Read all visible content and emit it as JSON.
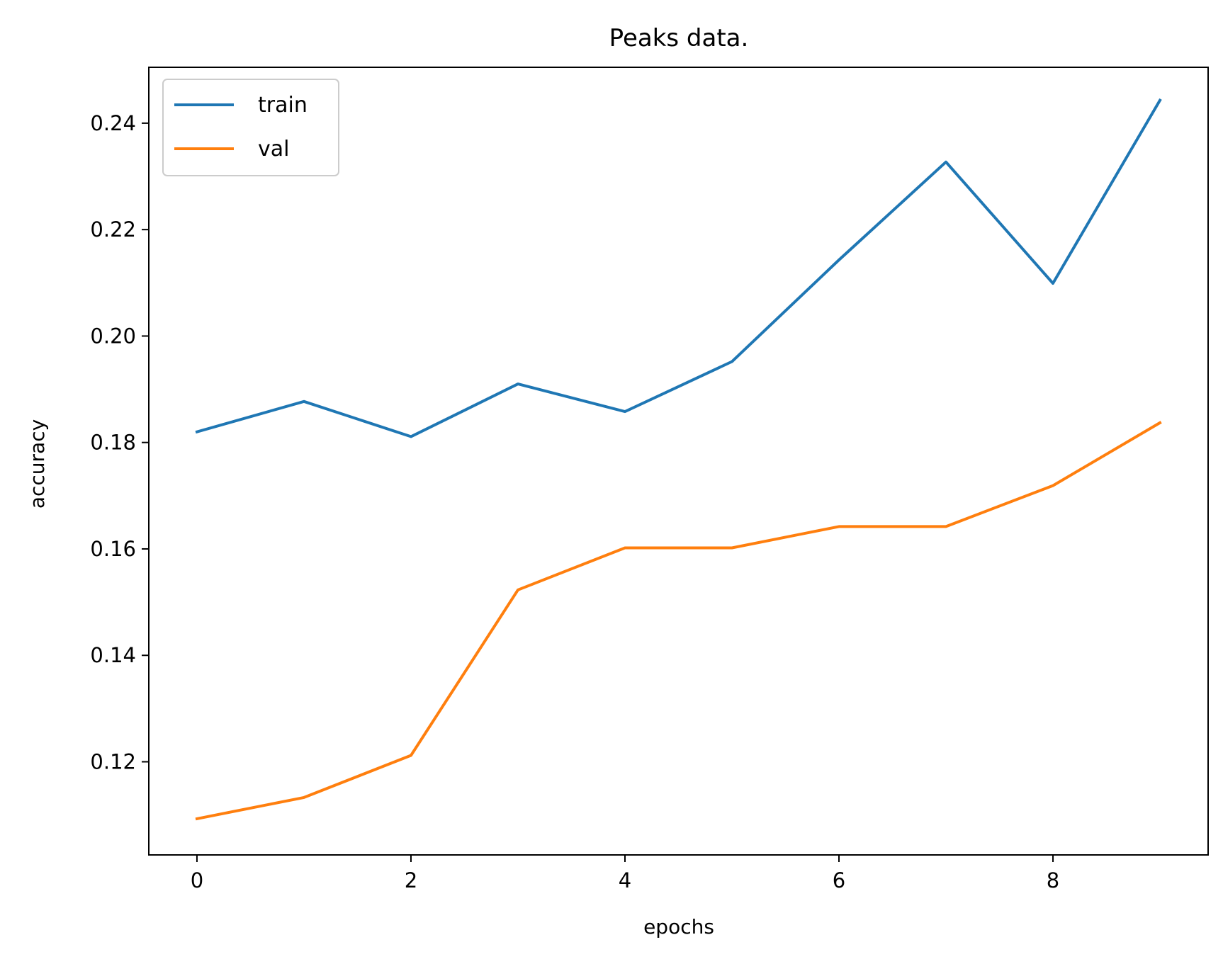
{
  "chart_data": {
    "type": "line",
    "title": "Peaks data.",
    "xlabel": "epochs",
    "ylabel": "accuracy",
    "xlim": [
      -0.45,
      9.45
    ],
    "ylim": [
      0.1025,
      0.2505
    ],
    "xticks": [
      0,
      2,
      4,
      6,
      8
    ],
    "xtick_labels": [
      "0",
      "2",
      "4",
      "6",
      "8"
    ],
    "yticks": [
      0.12,
      0.14,
      0.16,
      0.18,
      0.2,
      0.22,
      0.24
    ],
    "ytick_labels": [
      "0.12",
      "0.14",
      "0.16",
      "0.18",
      "0.20",
      "0.22",
      "0.24"
    ],
    "grid": false,
    "legend_position": "top-left",
    "x": [
      0,
      1,
      2,
      3,
      4,
      5,
      6,
      7,
      8,
      9
    ],
    "series": [
      {
        "name": "train",
        "color": "#1f77b4",
        "values": [
          0.182,
          0.1877,
          0.1811,
          0.191,
          0.1858,
          0.1952,
          0.2143,
          0.2327,
          0.2099,
          0.2443
        ]
      },
      {
        "name": "val",
        "color": "#ff7f0e",
        "values": [
          0.1093,
          0.1133,
          0.1212,
          0.1523,
          0.1602,
          0.1602,
          0.1642,
          0.1642,
          0.1719,
          0.1837
        ]
      }
    ]
  }
}
